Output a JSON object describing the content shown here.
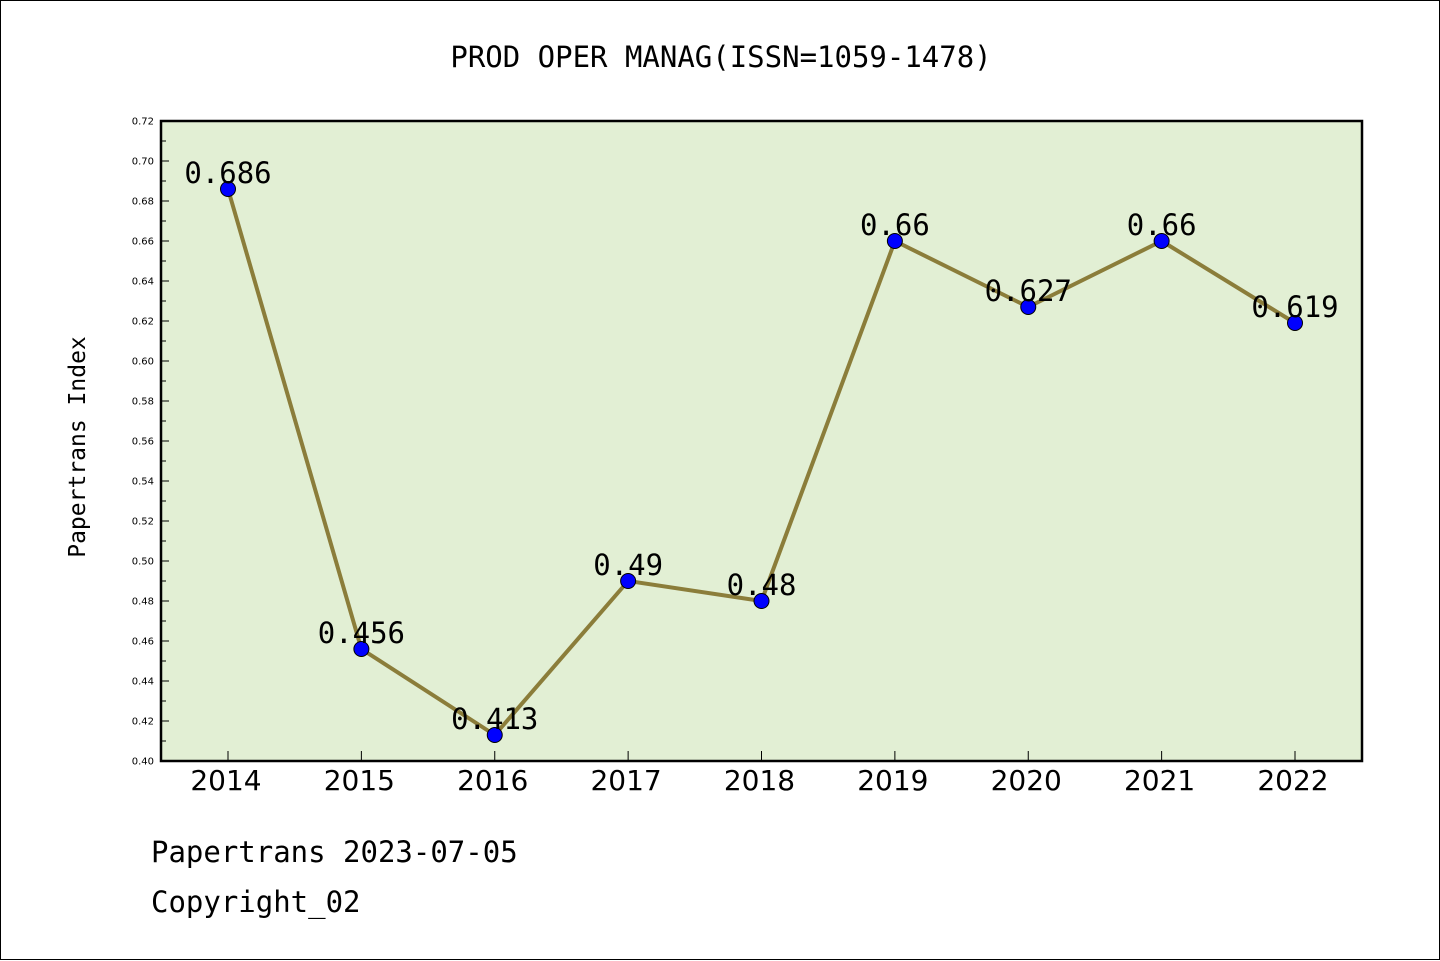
{
  "footer": {
    "line1": "Papertrans 2023-07-05",
    "line2": "Copyright_02"
  },
  "chart_data": {
    "type": "line",
    "title": "PROD OPER MANAG(ISSN=1059-1478)",
    "xlabel": "",
    "ylabel": "Papertrans Index",
    "categories": [
      "2014",
      "2015",
      "2016",
      "2017",
      "2018",
      "2019",
      "2020",
      "2021",
      "2022"
    ],
    "values": [
      0.686,
      0.456,
      0.413,
      0.49,
      0.48,
      0.66,
      0.627,
      0.66,
      0.619
    ],
    "data_labels": [
      "0.686",
      "0.456",
      "0.413",
      "0.49",
      "0.48",
      "0.66",
      "0.627",
      "0.66",
      "0.619"
    ],
    "ylim": [
      0.4,
      0.72
    ],
    "yticks": [
      "0.40",
      "0.42",
      "0.44",
      "0.46",
      "0.48",
      "0.50",
      "0.52",
      "0.54",
      "0.56",
      "0.58",
      "0.60",
      "0.62",
      "0.64",
      "0.66",
      "0.68",
      "0.70",
      "0.72"
    ],
    "grid": false,
    "legend": "none",
    "colors": {
      "plot_background": "#e2efd4",
      "line": "#8b7d3a",
      "marker": "#0000ff"
    }
  }
}
